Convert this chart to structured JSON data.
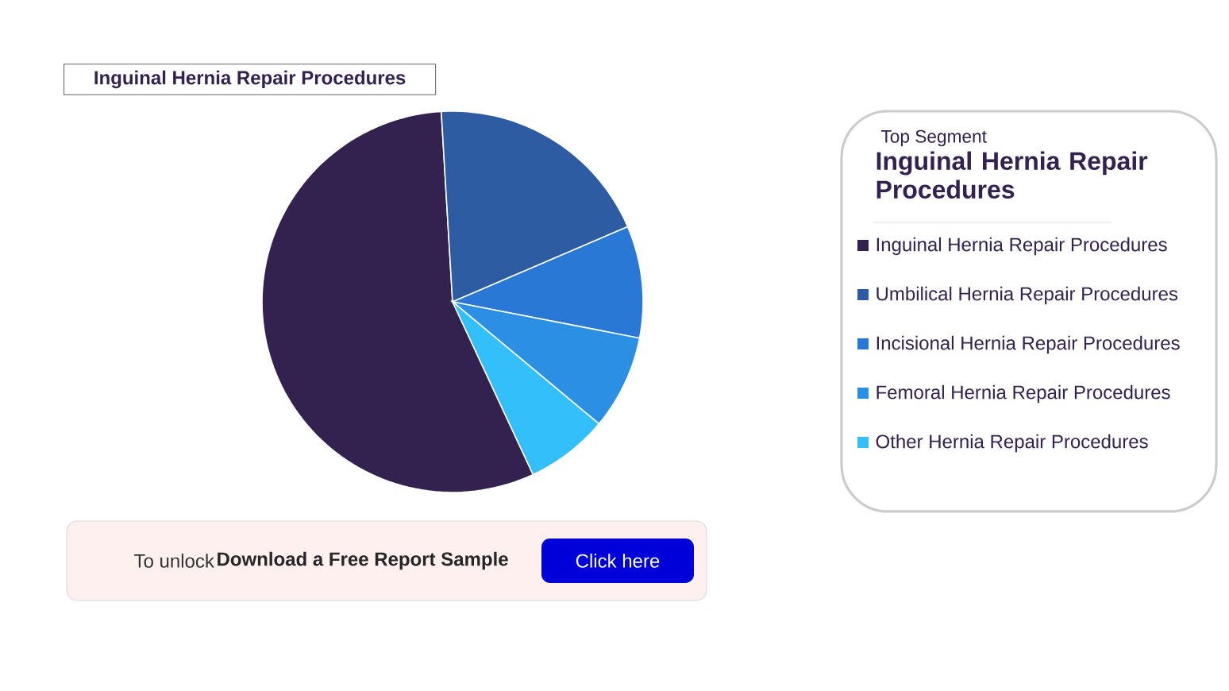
{
  "chart_data": {
    "type": "pie",
    "categories": [
      "Inguinal Hernia Repair Procedures",
      "Umbilical Hernia Repair Procedures",
      "Incisional Hernia Repair Procedures",
      "Femoral Hernia Repair Procedures",
      "Other Hernia Repair Procedures"
    ],
    "values": [
      56,
      19.5,
      9.5,
      8,
      7
    ],
    "colors": [
      "#33214f",
      "#2e5ca3",
      "#2a78d6",
      "#2b8fe3",
      "#33bff9"
    ],
    "legend": "right",
    "annotations": [
      {
        "text": "Inguinal Hernia Repair Procedures"
      },
      "Top Segment",
      "Inguinal Hernia Repair Procedures",
      "To unlock",
      "Download a Free Report Sample",
      "Click here"
    ]
  }
}
